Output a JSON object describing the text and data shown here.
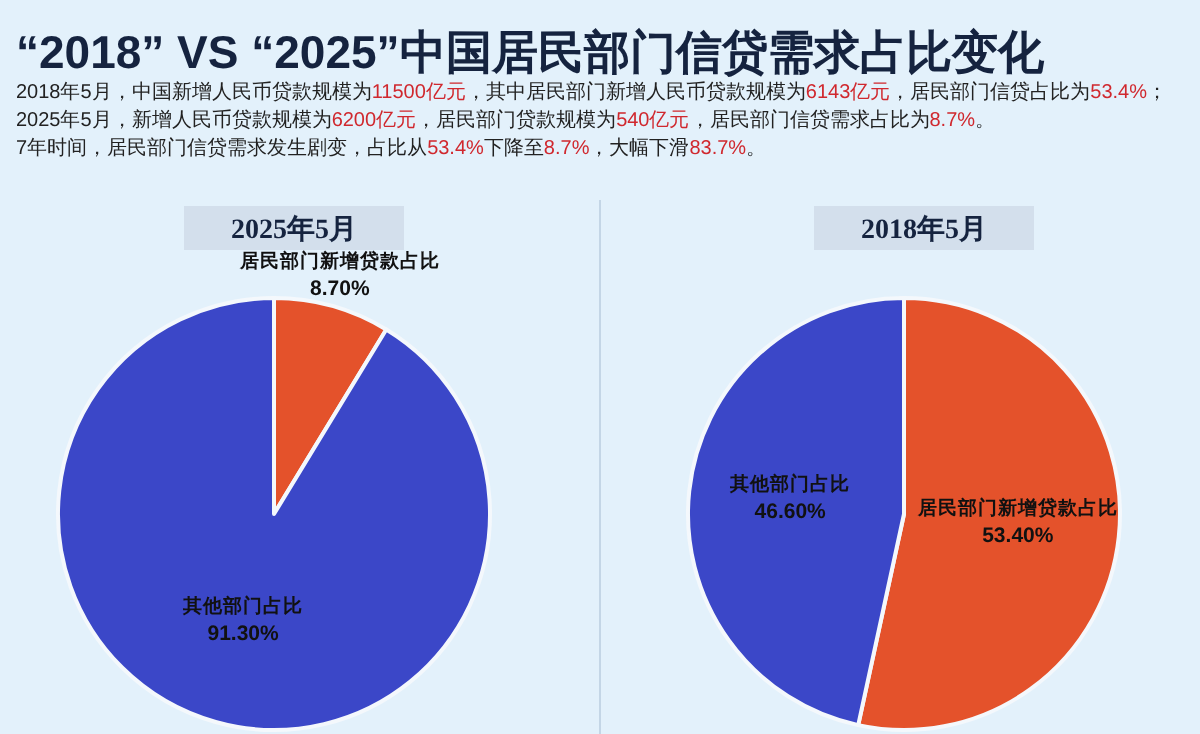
{
  "chart_data": [
    {
      "type": "other",
      "title": "“2018” VS “2025”中国居民部门信贷需求占比变化",
      "annotations": [
        "2018年5月，中国新增人民币贷款规模为11500亿元，其中居民部门新增人民币贷款规模为6143亿元，居民部门信贷占比为53.4%；2025年5月，新增人民币贷款规模为6200亿元，居民部门贷款规模为540亿元，居民部门信贷需求占比为8.7%。",
        "7年时间，居民部门信贷需求发生剧变，占比从53.4%下降至8.7%，大幅下滑83.7%。"
      ]
    },
    {
      "type": "pie",
      "title": "2025年5月",
      "categories": [
        "居民部门新增贷款占比",
        "其他部门占比"
      ],
      "values": [
        8.7,
        91.3
      ],
      "colors": [
        "#e4522b",
        "#3b47c8"
      ],
      "value_labels": [
        "8.70%",
        "91.30%"
      ]
    },
    {
      "type": "pie",
      "title": "2018年5月",
      "categories": [
        "居民部门新增贷款占比",
        "其他部门占比"
      ],
      "values": [
        53.4,
        46.6
      ],
      "colors": [
        "#e4522b",
        "#3b47c8"
      ],
      "value_labels": [
        "53.40%",
        "46.60%"
      ]
    }
  ]
}
